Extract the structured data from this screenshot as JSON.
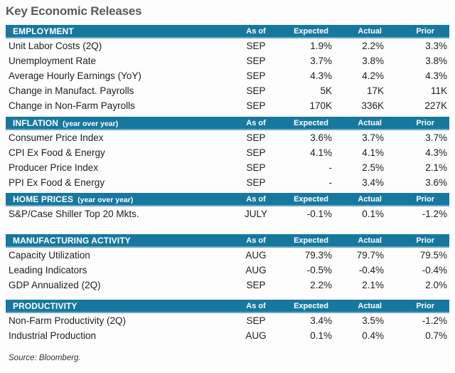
{
  "title": "Key Economic Releases",
  "source": "Source: Bloomberg.",
  "colors": {
    "section_band": "#17789f",
    "band_bottom_edge": "#6ca9c4",
    "title_text": "#58595b",
    "body_text": "#1e1e1e"
  },
  "chart_data": {
    "type": "table",
    "title": "Key Economic Releases",
    "columns": [
      "As of",
      "Expected",
      "Actual",
      "Prior"
    ],
    "sections": [
      {
        "name": "EMPLOYMENT",
        "suffix": "",
        "rows": [
          {
            "label": "Unit Labor Costs (2Q)",
            "asof": "SEP",
            "expected": "1.9%",
            "actual": "2.2%",
            "prior": "3.3%"
          },
          {
            "label": "Unemployment Rate",
            "asof": "SEP",
            "expected": "3.7%",
            "actual": "3.8%",
            "prior": "3.8%"
          },
          {
            "label": "Average Hourly Earnings (YoY)",
            "asof": "SEP",
            "expected": "4.3%",
            "actual": "4.2%",
            "prior": "4.3%"
          },
          {
            "label": "Change in Manufact. Payrolls",
            "asof": "SEP",
            "expected": "5K",
            "actual": "17K",
            "prior": "11K"
          },
          {
            "label": "Change in Non-Farm Payrolls",
            "asof": "SEP",
            "expected": "170K",
            "actual": "336K",
            "prior": "227K"
          }
        ]
      },
      {
        "name": "INFLATION",
        "suffix": "(year over year)",
        "rows": [
          {
            "label": "Consumer Price Index",
            "asof": "SEP",
            "expected": "3.6%",
            "actual": "3.7%",
            "prior": "3.7%"
          },
          {
            "label": "CPI Ex Food & Energy",
            "asof": "SEP",
            "expected": "4.1%",
            "actual": "4.1%",
            "prior": "4.3%"
          },
          {
            "label": "Producer Price Index",
            "asof": "SEP",
            "expected": "-",
            "actual": "2.5%",
            "prior": "2.1%"
          },
          {
            "label": "PPI Ex Food & Energy",
            "asof": "SEP",
            "expected": "-",
            "actual": "3.4%",
            "prior": "3.6%"
          }
        ]
      },
      {
        "name": "HOME PRICES",
        "suffix": "(year over year)",
        "rows": [
          {
            "label": "S&P/Case Shiller Top 20 Mkts.",
            "asof": "JULY",
            "expected": "-0.1%",
            "actual": "0.1%",
            "prior": "-1.2%"
          }
        ]
      },
      {
        "name": "MANUFACTURING ACTIVITY",
        "suffix": "",
        "rows": [
          {
            "label": "Capacity Utilization",
            "asof": "AUG",
            "expected": "79.3%",
            "actual": "79.7%",
            "prior": "79.5%"
          },
          {
            "label": "Leading Indicators",
            "asof": "AUG",
            "expected": "-0.5%",
            "actual": "-0.4%",
            "prior": "-0.4%"
          },
          {
            "label": "GDP Annualized (2Q)",
            "asof": "SEP",
            "expected": "2.2%",
            "actual": "2.1%",
            "prior": "2.0%"
          }
        ]
      },
      {
        "name": "PRODUCTIVITY",
        "suffix": "",
        "rows": [
          {
            "label": "Non-Farm Productivity (2Q)",
            "asof": "SEP",
            "expected": "3.4%",
            "actual": "3.5%",
            "prior": "-1.2%"
          },
          {
            "label": "Industrial Production",
            "asof": "AUG",
            "expected": "0.1%",
            "actual": "0.4%",
            "prior": "0.7%"
          }
        ]
      }
    ],
    "source": "Source: Bloomberg."
  }
}
